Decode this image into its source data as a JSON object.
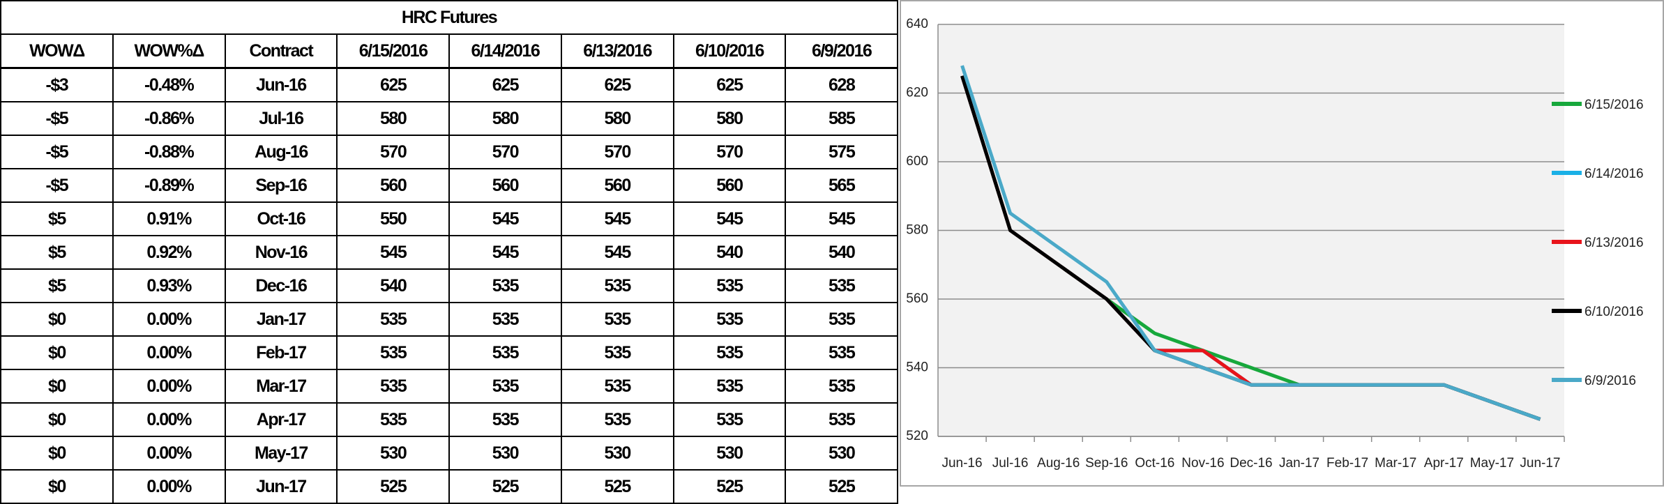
{
  "table": {
    "title": "HRC Futures",
    "columns": [
      "WOWΔ",
      "WOW%Δ",
      "Contract",
      "6/15/2016",
      "6/14/2016",
      "6/13/2016",
      "6/10/2016",
      "6/9/2016"
    ],
    "rows": [
      [
        "-$3",
        "-0.48%",
        "Jun-16",
        "625",
        "625",
        "625",
        "625",
        "628"
      ],
      [
        "-$5",
        "-0.86%",
        "Jul-16",
        "580",
        "580",
        "580",
        "580",
        "585"
      ],
      [
        "-$5",
        "-0.88%",
        "Aug-16",
        "570",
        "570",
        "570",
        "570",
        "575"
      ],
      [
        "-$5",
        "-0.89%",
        "Sep-16",
        "560",
        "560",
        "560",
        "560",
        "565"
      ],
      [
        "$5",
        "0.91%",
        "Oct-16",
        "550",
        "545",
        "545",
        "545",
        "545"
      ],
      [
        "$5",
        "0.92%",
        "Nov-16",
        "545",
        "545",
        "545",
        "540",
        "540"
      ],
      [
        "$5",
        "0.93%",
        "Dec-16",
        "540",
        "535",
        "535",
        "535",
        "535"
      ],
      [
        "$0",
        "0.00%",
        "Jan-17",
        "535",
        "535",
        "535",
        "535",
        "535"
      ],
      [
        "$0",
        "0.00%",
        "Feb-17",
        "535",
        "535",
        "535",
        "535",
        "535"
      ],
      [
        "$0",
        "0.00%",
        "Mar-17",
        "535",
        "535",
        "535",
        "535",
        "535"
      ],
      [
        "$0",
        "0.00%",
        "Apr-17",
        "535",
        "535",
        "535",
        "535",
        "535"
      ],
      [
        "$0",
        "0.00%",
        "May-17",
        "530",
        "530",
        "530",
        "530",
        "530"
      ],
      [
        "$0",
        "0.00%",
        "Jun-17",
        "525",
        "525",
        "525",
        "525",
        "525"
      ]
    ]
  },
  "chart_data": {
    "type": "line",
    "categories": [
      "Jun-16",
      "Jul-16",
      "Aug-16",
      "Sep-16",
      "Oct-16",
      "Nov-16",
      "Dec-16",
      "Jan-17",
      "Feb-17",
      "Mar-17",
      "Apr-17",
      "May-17",
      "Jun-17"
    ],
    "series": [
      {
        "name": "6/15/2016",
        "color": "#17a83c",
        "values": [
          625,
          580,
          570,
          560,
          550,
          545,
          540,
          535,
          535,
          535,
          535,
          530,
          525
        ]
      },
      {
        "name": "6/14/2016",
        "color": "#1ab0e6",
        "values": [
          625,
          580,
          570,
          560,
          545,
          545,
          535,
          535,
          535,
          535,
          535,
          530,
          525
        ]
      },
      {
        "name": "6/13/2016",
        "color": "#e8141b",
        "values": [
          625,
          580,
          570,
          560,
          545,
          545,
          535,
          535,
          535,
          535,
          535,
          530,
          525
        ]
      },
      {
        "name": "6/10/2016",
        "color": "#000000",
        "values": [
          625,
          580,
          570,
          560,
          545,
          540,
          535,
          535,
          535,
          535,
          535,
          530,
          525
        ]
      },
      {
        "name": "6/9/2016",
        "color": "#4aa9c8",
        "values": [
          628,
          585,
          575,
          565,
          545,
          540,
          535,
          535,
          535,
          535,
          535,
          530,
          525
        ]
      }
    ],
    "ylim": [
      520,
      640
    ],
    "yticks": [
      520,
      540,
      560,
      580,
      600,
      620,
      640
    ],
    "grid": true,
    "legend": "right"
  }
}
